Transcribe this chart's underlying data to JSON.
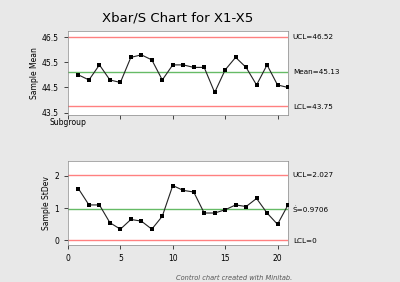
{
  "title": "Xbar/S Chart for X1-X5",
  "xbar_data": [
    45.0,
    44.8,
    45.4,
    44.8,
    44.7,
    45.7,
    45.8,
    45.6,
    44.8,
    45.4,
    45.4,
    45.3,
    45.3,
    44.3,
    45.2,
    45.7,
    45.3,
    44.6,
    45.4,
    44.6,
    44.5
  ],
  "s_data": [
    1.6,
    1.1,
    1.1,
    0.55,
    0.35,
    0.65,
    0.6,
    0.35,
    0.75,
    1.7,
    1.55,
    1.5,
    0.85,
    0.85,
    0.95,
    1.1,
    1.05,
    1.3,
    0.85,
    0.5,
    1.1
  ],
  "xbar_ucl": 46.52,
  "xbar_mean": 45.13,
  "xbar_lcl": 43.75,
  "s_ucl": 2.027,
  "s_mean": 0.9706,
  "s_lcl": 0,
  "xbar_ylim": [
    43.4,
    46.75
  ],
  "xbar_yticks": [
    43.5,
    44.5,
    45.5,
    46.5
  ],
  "s_ylim": [
    -0.15,
    2.45
  ],
  "s_yticks": [
    0,
    1,
    2
  ],
  "ucl_color": "#FF8080",
  "mean_color": "#66BB66",
  "lcl_color": "#FF8080",
  "line_color": "#222222",
  "bg_color": "#E8E8E8",
  "plot_bg": "#FFFFFF",
  "footer": "Control chart created with Minitab.",
  "xlabel": "Subgroup"
}
